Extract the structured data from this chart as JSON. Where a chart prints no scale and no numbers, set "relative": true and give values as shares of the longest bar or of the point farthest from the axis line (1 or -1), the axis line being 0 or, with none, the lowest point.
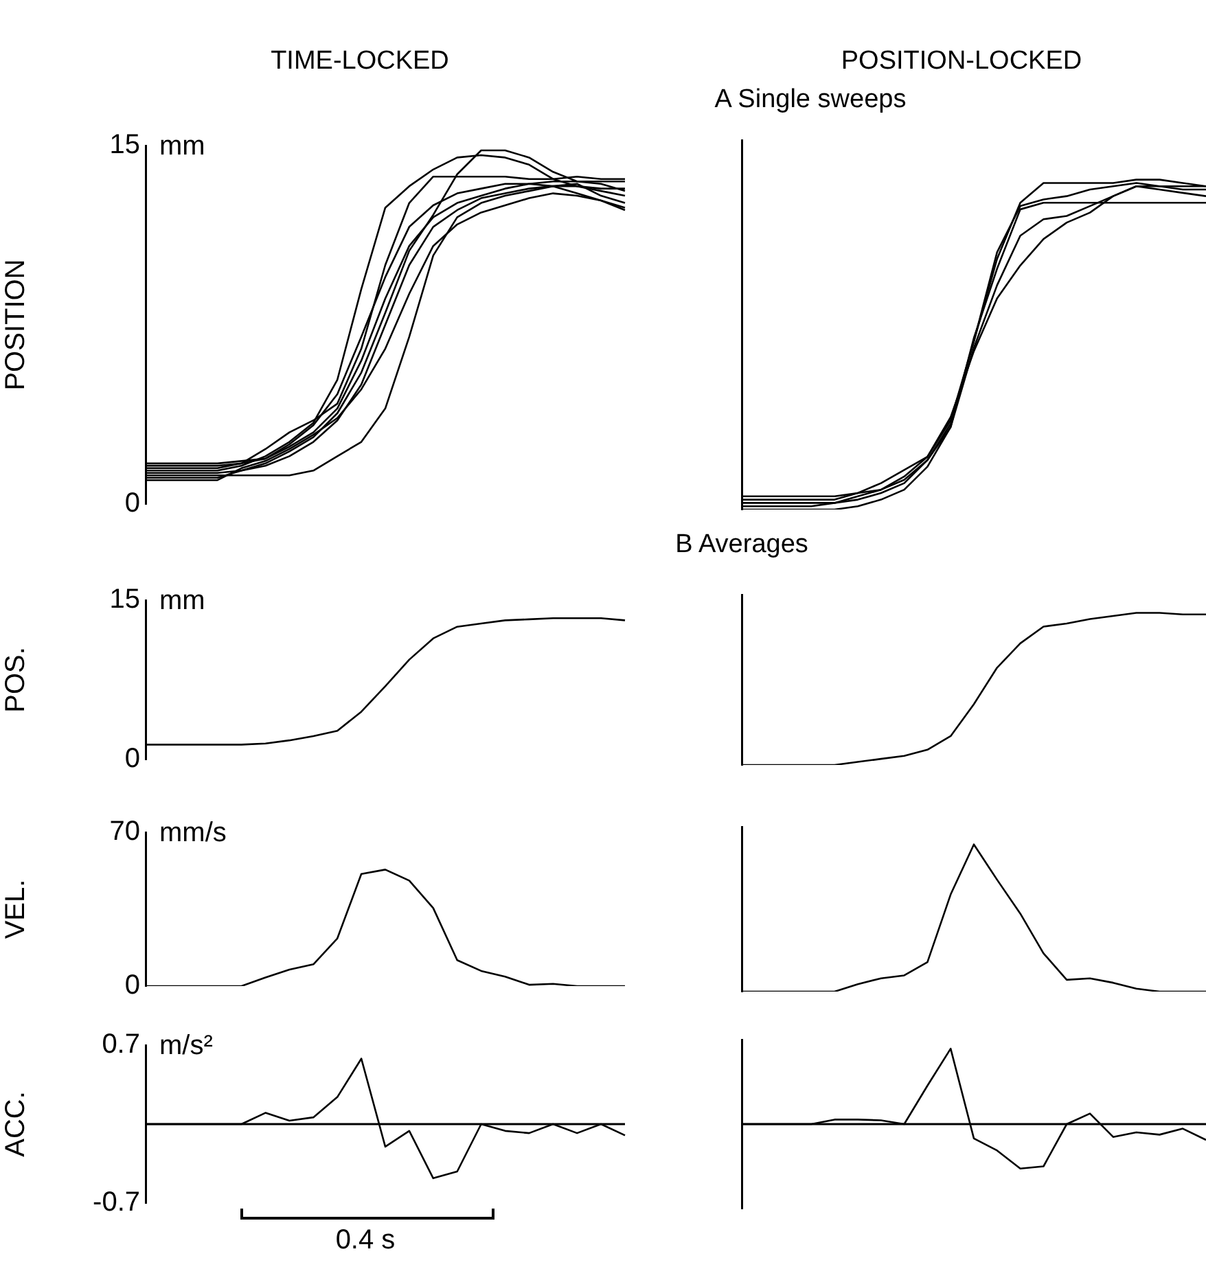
{
  "chart_data": [
    {
      "type": "line",
      "title": "TIME-LOCKED",
      "ylabel": "POSITION",
      "annotations": [
        "mm"
      ],
      "ylim": [
        0,
        15
      ],
      "yticks": [
        0,
        15
      ],
      "categories": [
        null,
        null,
        null,
        null,
        null,
        null,
        null,
        null,
        null,
        null,
        null,
        null,
        null,
        null,
        null,
        null,
        null,
        null,
        null,
        null,
        null
      ],
      "series": [
        {
          "color": "#000000",
          "values": [
            1.4,
            1.4,
            1.4,
            1.4,
            1.6,
            2.0,
            2.6,
            3.4,
            5.2,
            9.0,
            12.4,
            13.3,
            14.0,
            14.5,
            14.6,
            14.5,
            14.2,
            13.6,
            13.3,
            13.1,
            12.9
          ]
        },
        {
          "color": "#000000",
          "values": [
            1.3,
            1.3,
            1.3,
            1.3,
            1.4,
            1.6,
            2.0,
            2.6,
            3.5,
            5.0,
            7.5,
            10.0,
            11.6,
            12.3,
            12.8,
            13.0,
            13.2,
            13.3,
            13.3,
            13.2,
            13.2
          ]
        },
        {
          "color": "#000000",
          "values": [
            1.2,
            1.2,
            1.2,
            1.2,
            1.2,
            1.2,
            1.2,
            1.4,
            2.0,
            2.6,
            4.0,
            7.0,
            10.4,
            12.0,
            12.6,
            12.9,
            13.1,
            13.3,
            13.4,
            12.9,
            12.6
          ]
        },
        {
          "color": "#000000",
          "values": [
            1.5,
            1.5,
            1.5,
            1.5,
            1.7,
            2.3,
            3.0,
            3.5,
            4.2,
            6.5,
            10.0,
            12.6,
            13.7,
            13.7,
            13.7,
            13.7,
            13.6,
            13.6,
            13.7,
            13.6,
            13.6
          ]
        },
        {
          "color": "#000000",
          "values": [
            1.6,
            1.6,
            1.6,
            1.6,
            1.7,
            1.9,
            2.4,
            3.0,
            4.0,
            6.0,
            8.6,
            10.8,
            12.0,
            12.6,
            12.9,
            13.2,
            13.4,
            13.3,
            13.0,
            12.7,
            12.4
          ]
        },
        {
          "color": "#000000",
          "values": [
            1.1,
            1.1,
            1.1,
            1.1,
            1.4,
            1.7,
            2.2,
            2.8,
            3.8,
            5.5,
            8.0,
            10.6,
            12.1,
            13.8,
            14.8,
            14.8,
            14.5,
            13.9,
            13.5,
            13.5,
            13.5
          ]
        },
        {
          "color": "#000000",
          "values": [
            1.0,
            1.0,
            1.0,
            1.0,
            1.5,
            1.8,
            2.3,
            2.9,
            3.6,
            4.8,
            6.5,
            8.8,
            10.8,
            11.7,
            12.2,
            12.5,
            12.8,
            13.0,
            12.9,
            12.7,
            12.3
          ]
        },
        {
          "color": "#000000",
          "values": [
            1.7,
            1.7,
            1.7,
            1.7,
            1.8,
            1.9,
            2.5,
            3.3,
            4.6,
            7.0,
            9.5,
            11.6,
            12.5,
            13.0,
            13.2,
            13.4,
            13.4,
            13.5,
            13.5,
            13.4,
            13.1
          ]
        }
      ]
    },
    {
      "type": "line",
      "title": "POSITION-LOCKED",
      "subtitle": "A Single sweeps",
      "relative": true,
      "categories": [
        null,
        null,
        null,
        null,
        null,
        null,
        null,
        null,
        null,
        null,
        null,
        null,
        null,
        null,
        null,
        null,
        null,
        null,
        null,
        null,
        null
      ],
      "series": [
        {
          "color": "#000000",
          "values": [
            0.01,
            0.01,
            0.01,
            0.01,
            0.02,
            0.04,
            0.06,
            0.1,
            0.16,
            0.27,
            0.51,
            0.76,
            0.93,
            0.99,
            0.99,
            0.99,
            0.99,
            1,
            1,
            0.99,
            0.98
          ]
        },
        {
          "color": "#000000",
          "values": [
            0.02,
            0.02,
            0.02,
            0.02,
            0.02,
            0.03,
            0.05,
            0.08,
            0.15,
            0.25,
            0.52,
            0.73,
            0.91,
            0.93,
            0.93,
            0.93,
            0.93,
            0.93,
            0.93,
            0.93,
            0.93
          ]
        },
        {
          "color": "#000000",
          "values": [
            0,
            0,
            0,
            0,
            0,
            0.01,
            0.03,
            0.06,
            0.13,
            0.25,
            0.49,
            0.68,
            0.83,
            0.88,
            0.89,
            0.92,
            0.95,
            0.98,
            0.97,
            0.96,
            0.95
          ]
        },
        {
          "color": "#000000",
          "values": [
            0.03,
            0.03,
            0.03,
            0.03,
            0.03,
            0.05,
            0.08,
            0.12,
            0.16,
            0.28,
            0.48,
            0.64,
            0.74,
            0.82,
            0.87,
            0.9,
            0.95,
            0.98,
            0.98,
            0.97,
            0.97
          ]
        },
        {
          "color": "#000000",
          "values": [
            0.04,
            0.04,
            0.04,
            0.04,
            0.04,
            0.05,
            0.06,
            0.09,
            0.15,
            0.26,
            0.51,
            0.78,
            0.92,
            0.94,
            0.95,
            0.97,
            0.98,
            0.99,
            0.98,
            0.98,
            0.98
          ]
        }
      ]
    },
    {
      "type": "line",
      "ylabel": "POS.",
      "annotations": [
        "mm"
      ],
      "ylim": [
        0,
        15
      ],
      "yticks": [
        0,
        15
      ],
      "categories": [
        null,
        null,
        null,
        null,
        null,
        null,
        null,
        null,
        null,
        null,
        null,
        null,
        null,
        null,
        null,
        null,
        null,
        null,
        null,
        null,
        null
      ],
      "series": [
        {
          "color": "#000000",
          "values": [
            1.4,
            1.4,
            1.4,
            1.4,
            1.4,
            1.5,
            1.8,
            2.2,
            2.7,
            4.5,
            6.9,
            9.4,
            11.4,
            12.5,
            12.8,
            13.1,
            13.2,
            13.3,
            13.3,
            13.3,
            13.1
          ]
        }
      ]
    },
    {
      "type": "line",
      "subtitle": "B Averages",
      "relative": true,
      "categories": [
        null,
        null,
        null,
        null,
        null,
        null,
        null,
        null,
        null,
        null,
        null,
        null,
        null,
        null,
        null,
        null,
        null,
        null,
        null,
        null,
        null
      ],
      "series": [
        {
          "color": "#000000",
          "values": [
            0,
            0,
            0,
            0,
            0,
            0.02,
            0.04,
            0.06,
            0.1,
            0.19,
            0.4,
            0.64,
            0.8,
            0.91,
            0.93,
            0.96,
            0.98,
            1,
            1,
            0.99,
            0.99
          ]
        }
      ]
    },
    {
      "type": "line",
      "ylabel": "VEL.",
      "annotations": [
        "mm/s"
      ],
      "ylim": [
        0,
        70
      ],
      "yticks": [
        0,
        70
      ],
      "categories": [
        null,
        null,
        null,
        null,
        null,
        null,
        null,
        null,
        null,
        null,
        null,
        null,
        null,
        null,
        null,
        null,
        null,
        null,
        null,
        null,
        null
      ],
      "series": [
        {
          "color": "#000000",
          "values": [
            0,
            0,
            0,
            0,
            0,
            3.9,
            7.5,
            9.9,
            21.7,
            51,
            53,
            48,
            35.5,
            11.8,
            6.9,
            4.3,
            0.6,
            1,
            0,
            0,
            0
          ]
        }
      ]
    },
    {
      "type": "line",
      "relative": true,
      "categories": [
        null,
        null,
        null,
        null,
        null,
        null,
        null,
        null,
        null,
        null,
        null,
        null,
        null,
        null,
        null,
        null,
        null,
        null,
        null,
        null,
        null
      ],
      "series": [
        {
          "color": "#000000",
          "values": [
            0,
            0,
            0,
            0,
            0,
            0.05,
            0.09,
            0.11,
            0.2,
            0.66,
            1,
            0.76,
            0.53,
            0.26,
            0.08,
            0.09,
            0.06,
            0.02,
            0,
            0,
            0
          ]
        }
      ]
    },
    {
      "type": "line",
      "ylabel": "ACC.",
      "annotations": [
        "m/s²",
        "0.4 s"
      ],
      "ylim": [
        -0.7,
        0.7
      ],
      "yticks": [
        -0.7,
        0.7
      ],
      "ref_lines": [
        {
          "axis": "y",
          "value": 0,
          "color": "#000000"
        }
      ],
      "categories": [
        null,
        null,
        null,
        null,
        null,
        null,
        null,
        null,
        null,
        null,
        null,
        null,
        null,
        null,
        null,
        null,
        null,
        null,
        null,
        null,
        null
      ],
      "series": [
        {
          "color": "#000000",
          "values": [
            0,
            0,
            0,
            0,
            0,
            0.1,
            0.03,
            0.06,
            0.24,
            0.58,
            -0.2,
            -0.06,
            -0.48,
            -0.42,
            0,
            -0.06,
            -0.08,
            0,
            -0.08,
            0,
            -0.1
          ]
        }
      ]
    },
    {
      "type": "line",
      "relative": true,
      "categories": [
        null,
        null,
        null,
        null,
        null,
        null,
        null,
        null,
        null,
        null,
        null,
        null,
        null,
        null,
        null,
        null,
        null,
        null,
        null,
        null,
        null
      ],
      "series": [
        {
          "color": "#000000",
          "values": [
            0,
            0,
            0,
            0,
            0.06,
            0.06,
            0.05,
            0,
            0.51,
            1,
            -0.19,
            -0.35,
            -0.59,
            -0.56,
            0,
            0.14,
            -0.17,
            -0.11,
            -0.14,
            -0.06,
            -0.21
          ]
        }
      ]
    }
  ]
}
